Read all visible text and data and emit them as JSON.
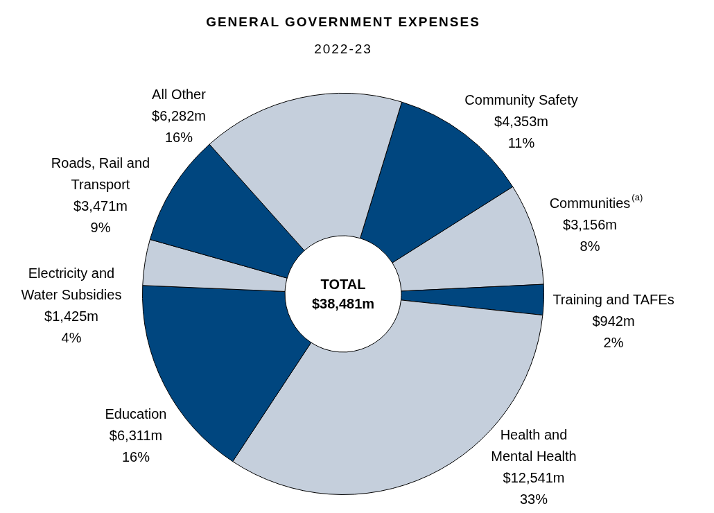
{
  "chart_data": {
    "type": "donut",
    "title": "GENERAL GOVERNMENT EXPENSES",
    "subtitle": "2022-23",
    "categories": [
      "Community Safety",
      "Communities$^{(a)}$",
      "Training and TAFEs",
      "Health and Mental Health",
      "Education",
      "Electricity and Water Subsidies",
      "Roads, Rail and Transport",
      "All Other"
    ],
    "values": [
      4353,
      3156,
      942,
      12541,
      6311,
      1425,
      3471,
      6282
    ],
    "colors": [
      "#00467f",
      "#c5cfdc",
      "#00467f",
      "#c5cfdc",
      "#00467f",
      "#c5cfdc",
      "#00467f",
      "#c5cfdc"
    ],
    "value_labels": [
      "$4,353m",
      "$3,156m",
      "$942m",
      "$12,541m",
      "$6,311m",
      "$1,425m",
      "$3,471m",
      "$6,282m"
    ],
    "annotations": [
      "TOTAL\n$38,481m",
      {
        "text": "11%",
        "x": "Community Safety"
      },
      {
        "text": "8%",
        "x": "Communities$^{(a)}$"
      },
      {
        "text": "2%",
        "x": "Training and TAFEs"
      },
      {
        "text": "33%",
        "x": "Health and Mental Health"
      },
      {
        "text": "16%",
        "x": "Education"
      },
      {
        "text": "4%",
        "x": "Electricity and Water Subsidies"
      },
      {
        "text": "9%",
        "x": "Roads, Rail and Transport"
      },
      {
        "text": "16%",
        "x": "All Other"
      }
    ],
    "legend": false
  }
}
